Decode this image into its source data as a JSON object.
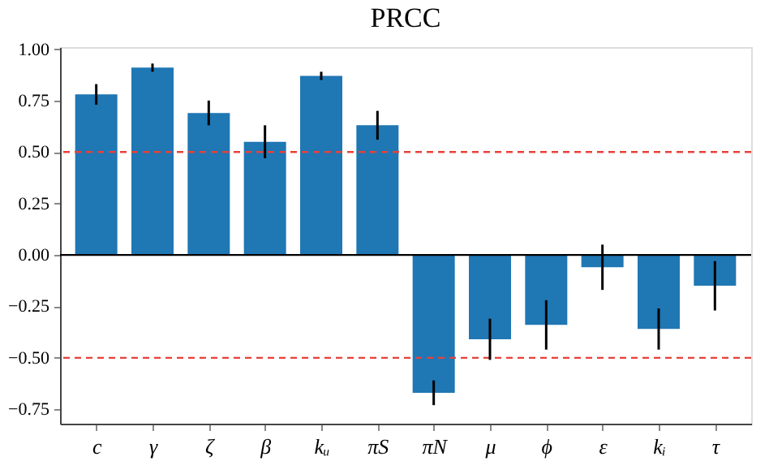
{
  "chart_data": {
    "type": "bar",
    "title": "PRCC",
    "categories": [
      "c",
      "γ",
      "ζ",
      "β",
      "kᵤ",
      "πS",
      "πN",
      "μ",
      "ϕ",
      "ε",
      "kᵢ",
      "τ"
    ],
    "values": [
      0.78,
      0.91,
      0.69,
      0.55,
      0.87,
      0.63,
      -0.67,
      -0.41,
      -0.34,
      -0.06,
      -0.36,
      -0.15
    ],
    "errors": [
      0.05,
      0.02,
      0.06,
      0.08,
      0.02,
      0.07,
      0.06,
      0.1,
      0.12,
      0.11,
      0.1,
      0.12
    ],
    "color": "#1f77b4",
    "ylim": [
      -0.82,
      1.01
    ],
    "yticks": [
      {
        "value": -0.75,
        "label": "−0.75"
      },
      {
        "value": -0.5,
        "label": "−0.50"
      },
      {
        "value": -0.25,
        "label": "−0.25"
      },
      {
        "value": 0,
        "label": "0.00"
      },
      {
        "value": 0.25,
        "label": "0.25"
      },
      {
        "value": 0.5,
        "label": "0.50"
      },
      {
        "value": 0.75,
        "label": "0.75"
      },
      {
        "value": 1,
        "label": "1.00"
      }
    ],
    "ref_lines": [
      {
        "axis": "y",
        "value": 0.5,
        "color": "#e8413a",
        "line_style": "dashed"
      },
      {
        "axis": "y",
        "value": -0.5,
        "color": "#e8413a",
        "line_style": "dashed"
      },
      {
        "axis": "y",
        "value": 0,
        "color": "#000000",
        "line_style": "solid"
      }
    ],
    "grid": false
  }
}
